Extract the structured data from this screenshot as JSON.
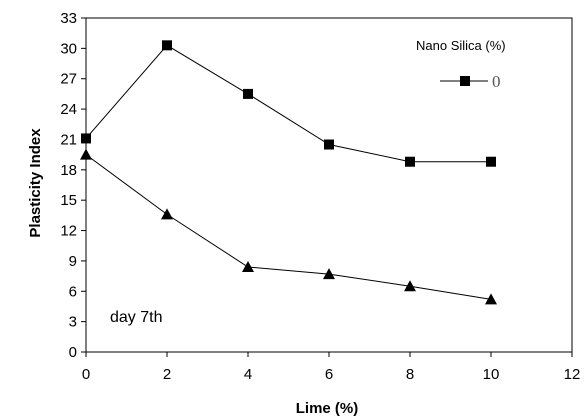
{
  "chart_data": {
    "type": "line",
    "title": "",
    "xlabel": "Lime (%)",
    "ylabel": "Plasticity Index",
    "xlim": [
      0,
      12
    ],
    "ylim": [
      0,
      33
    ],
    "xticks": [
      0,
      2,
      4,
      6,
      8,
      10,
      12
    ],
    "yticks": [
      0,
      3,
      6,
      9,
      12,
      15,
      18,
      21,
      24,
      27,
      30,
      33
    ],
    "grid": false,
    "legend": {
      "title": "Nano Silica (%)",
      "placement": "top-right",
      "entries": [
        {
          "label": "0",
          "marker": "square"
        }
      ]
    },
    "annotation": "day 7th",
    "series": [
      {
        "name": "0",
        "marker": "square",
        "color": "#000000",
        "x": [
          0,
          2,
          4,
          6,
          8,
          10
        ],
        "y": [
          21.1,
          30.3,
          25.5,
          20.5,
          18.8,
          18.8
        ]
      },
      {
        "marker": "triangle",
        "color": "#000000",
        "x": [
          0,
          2,
          4,
          6,
          8,
          10
        ],
        "y": [
          19.5,
          13.6,
          8.4,
          7.7,
          6.5,
          5.2
        ]
      }
    ]
  }
}
